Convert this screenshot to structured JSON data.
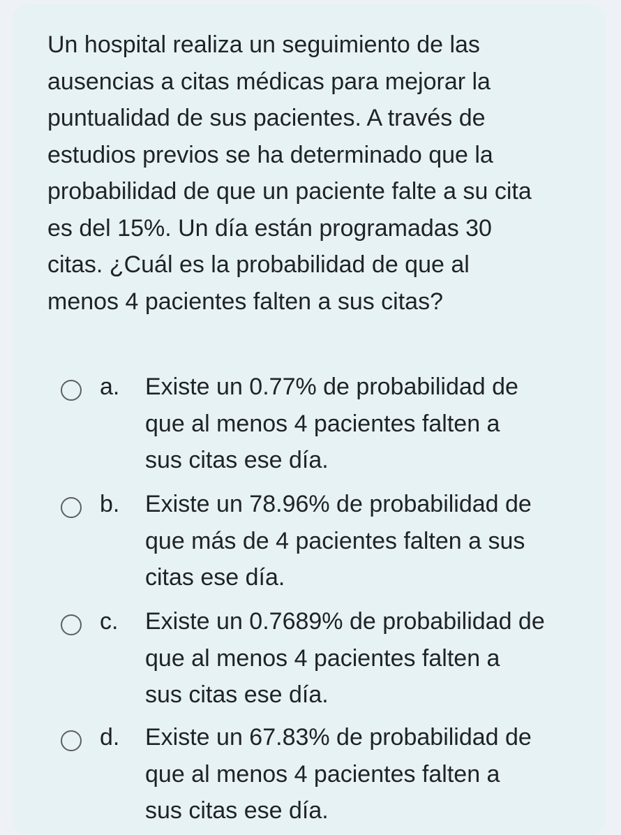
{
  "question": {
    "text": "Un hospital realiza un seguimiento de las\nausencias a citas médicas para mejorar la\npuntualidad de sus pacientes. A través de\nestudios previos se ha determinado que la\nprobabilidad de que un paciente falte a su cita\nes del 15%. Un día están programadas 30\ncitas. ¿Cuál es la probabilidad de que al\nmenos 4 pacientes falten a sus citas?"
  },
  "options": [
    {
      "letter": "a.",
      "text": "Existe un 0.77% de probabilidad de\nque al menos 4 pacientes falten a\nsus citas ese día.",
      "selected": false
    },
    {
      "letter": "b.",
      "text": "Existe un 78.96% de probabilidad de\nque más de 4 pacientes falten a sus\ncitas ese día.",
      "selected": false
    },
    {
      "letter": "c.",
      "text": "Existe un 0.7689% de probabilidad de\nque al menos 4 pacientes falten a\nsus citas ese día.",
      "selected": false
    },
    {
      "letter": "d.",
      "text": "Existe un 67.83% de probabilidad de\nque al menos 4 pacientes falten a\nsus citas ese día.",
      "selected": false
    }
  ],
  "colors": {
    "background": "#eef2f6",
    "card": "#e7f2f5",
    "text": "#1f2326",
    "radio_border": "#5b5f63"
  }
}
